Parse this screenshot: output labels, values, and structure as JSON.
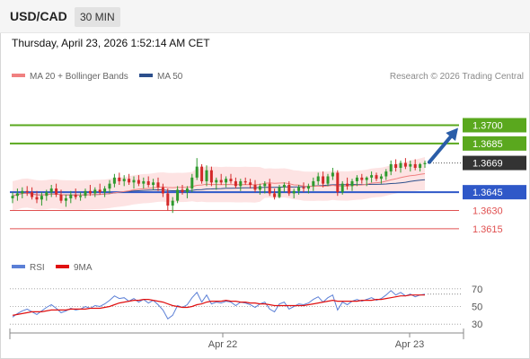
{
  "header": {
    "symbol": "USD/CAD",
    "timeframe": "30 MIN"
  },
  "timestamp": "Thursday, April 23, 2026 1:52:14 AM CET",
  "legend": {
    "ma20": {
      "label": "MA 20 + Bollinger Bands",
      "color": "#f08080"
    },
    "ma50": {
      "label": "MA 50",
      "color": "#2c4f8c"
    }
  },
  "copyright": "Research © 2026 Trading Central",
  "rsi_legend": {
    "rsi": {
      "label": "RSI",
      "color": "#5b7fd6"
    },
    "ma9": {
      "label": "9MA",
      "color": "#e01010"
    }
  },
  "colors": {
    "resistance": "#5aa81e",
    "support": "#2f58c8",
    "support_light": "#e05050",
    "price_tag": "#333333",
    "candle_up": "#2e9a2e",
    "candle_down": "#d42a2a",
    "band_fill": "#fde0e0",
    "arrow": "#2a5da8"
  },
  "chart_data": [
    {
      "type": "candlestick",
      "symbol": "USD/CAD",
      "timeframe": "30 MIN",
      "x_ticks": [
        "Apr 22",
        "Apr 23"
      ],
      "ylim": [
        1.3595,
        1.3735
      ],
      "last_price": 1.3669,
      "levels": [
        {
          "value": 1.37,
          "label": "1.3700",
          "kind": "resistance"
        },
        {
          "value": 1.3685,
          "label": "1.3685",
          "kind": "resistance"
        },
        {
          "value": 1.3645,
          "label": "1.3645",
          "kind": "support"
        },
        {
          "value": 1.363,
          "label": "1.3630",
          "kind": "support_light"
        },
        {
          "value": 1.3615,
          "label": "1.3615",
          "kind": "support_light"
        }
      ],
      "forecast": {
        "from": 1.3669,
        "to": 1.37,
        "direction": "up"
      },
      "ohlc": [
        [
          1.364,
          1.3645,
          1.3636,
          1.3642
        ],
        [
          1.3642,
          1.3648,
          1.3638,
          1.3644
        ],
        [
          1.3644,
          1.3649,
          1.364,
          1.3646
        ],
        [
          1.3646,
          1.365,
          1.3642,
          1.3645
        ],
        [
          1.3645,
          1.3649,
          1.3639,
          1.3641
        ],
        [
          1.3641,
          1.3646,
          1.3636,
          1.3639
        ],
        [
          1.3639,
          1.3645,
          1.3634,
          1.3642
        ],
        [
          1.3642,
          1.3647,
          1.3638,
          1.3645
        ],
        [
          1.3645,
          1.3651,
          1.3641,
          1.3648
        ],
        [
          1.3648,
          1.3652,
          1.3641,
          1.3643
        ],
        [
          1.3643,
          1.3647,
          1.3636,
          1.3638
        ],
        [
          1.3638,
          1.3643,
          1.3633,
          1.364
        ],
        [
          1.364,
          1.3646,
          1.3636,
          1.3643
        ],
        [
          1.3643,
          1.3648,
          1.3639,
          1.3641
        ],
        [
          1.3641,
          1.3645,
          1.3638,
          1.3642
        ],
        [
          1.3642,
          1.3648,
          1.364,
          1.3646
        ],
        [
          1.3646,
          1.3651,
          1.3642,
          1.3644
        ],
        [
          1.3644,
          1.3649,
          1.3641,
          1.3647
        ],
        [
          1.3647,
          1.3652,
          1.3643,
          1.3645
        ],
        [
          1.3645,
          1.365,
          1.3641,
          1.3648
        ],
        [
          1.3648,
          1.3655,
          1.3644,
          1.3652
        ],
        [
          1.3652,
          1.366,
          1.3649,
          1.3657
        ],
        [
          1.3657,
          1.3661,
          1.3651,
          1.3654
        ],
        [
          1.3654,
          1.3659,
          1.365,
          1.3656
        ],
        [
          1.3656,
          1.366,
          1.3651,
          1.3653
        ],
        [
          1.3653,
          1.3658,
          1.3648,
          1.3655
        ],
        [
          1.3655,
          1.3659,
          1.365,
          1.3652
        ],
        [
          1.3652,
          1.3657,
          1.3648,
          1.3654
        ],
        [
          1.3654,
          1.3658,
          1.3649,
          1.3651
        ],
        [
          1.3651,
          1.3656,
          1.3647,
          1.3653
        ],
        [
          1.3653,
          1.3657,
          1.3646,
          1.3649
        ],
        [
          1.3649,
          1.3652,
          1.3641,
          1.3644
        ],
        [
          1.3644,
          1.3648,
          1.363,
          1.3634
        ],
        [
          1.3634,
          1.3641,
          1.3628,
          1.3638
        ],
        [
          1.3638,
          1.365,
          1.3636,
          1.3647
        ],
        [
          1.3647,
          1.3651,
          1.3643,
          1.3645
        ],
        [
          1.3645,
          1.365,
          1.364,
          1.3648
        ],
        [
          1.3648,
          1.366,
          1.3645,
          1.3657
        ],
        [
          1.3657,
          1.3673,
          1.3655,
          1.3666
        ],
        [
          1.3666,
          1.3668,
          1.3652,
          1.3654
        ],
        [
          1.3654,
          1.3667,
          1.365,
          1.3663
        ],
        [
          1.3663,
          1.3666,
          1.365,
          1.3653
        ],
        [
          1.3653,
          1.3657,
          1.3647,
          1.3655
        ],
        [
          1.3655,
          1.366,
          1.3651,
          1.3653
        ],
        [
          1.3653,
          1.3658,
          1.3649,
          1.3656
        ],
        [
          1.3656,
          1.366,
          1.3652,
          1.3654
        ],
        [
          1.3654,
          1.3657,
          1.3648,
          1.365
        ],
        [
          1.365,
          1.3656,
          1.3646,
          1.3654
        ],
        [
          1.3654,
          1.3657,
          1.3651,
          1.3653
        ],
        [
          1.3653,
          1.3656,
          1.3648,
          1.3651
        ],
        [
          1.3651,
          1.3655,
          1.3645,
          1.3647
        ],
        [
          1.3647,
          1.3652,
          1.3643,
          1.365
        ],
        [
          1.365,
          1.3654,
          1.3644,
          1.3652
        ],
        [
          1.3652,
          1.3656,
          1.3642,
          1.3644
        ],
        [
          1.3644,
          1.3648,
          1.3639,
          1.3641
        ],
        [
          1.3641,
          1.3651,
          1.364,
          1.3649
        ],
        [
          1.3649,
          1.3653,
          1.3645,
          1.3651
        ],
        [
          1.3651,
          1.3654,
          1.3642,
          1.3644
        ],
        [
          1.3644,
          1.3648,
          1.364,
          1.3646
        ],
        [
          1.3646,
          1.3651,
          1.3643,
          1.3649
        ],
        [
          1.3649,
          1.3653,
          1.3645,
          1.3648
        ],
        [
          1.3648,
          1.3652,
          1.3644,
          1.365
        ],
        [
          1.365,
          1.3657,
          1.3646,
          1.3654
        ],
        [
          1.3654,
          1.3661,
          1.3651,
          1.3658
        ],
        [
          1.3658,
          1.3662,
          1.3649,
          1.3652
        ],
        [
          1.3652,
          1.366,
          1.365,
          1.3658
        ],
        [
          1.3658,
          1.3665,
          1.3655,
          1.3661
        ],
        [
          1.3661,
          1.3663,
          1.3642,
          1.3645
        ],
        [
          1.3645,
          1.3654,
          1.3643,
          1.3652
        ],
        [
          1.3652,
          1.3657,
          1.3647,
          1.365
        ],
        [
          1.365,
          1.3656,
          1.3646,
          1.3654
        ],
        [
          1.3654,
          1.3659,
          1.365,
          1.3657
        ],
        [
          1.3657,
          1.366,
          1.3652,
          1.3655
        ],
        [
          1.3655,
          1.3658,
          1.365,
          1.3657
        ],
        [
          1.3657,
          1.3662,
          1.3653,
          1.3659
        ],
        [
          1.3659,
          1.3661,
          1.3654,
          1.3656
        ],
        [
          1.3656,
          1.366,
          1.3652,
          1.3658
        ],
        [
          1.3658,
          1.3664,
          1.3655,
          1.3662
        ],
        [
          1.3662,
          1.3671,
          1.3659,
          1.3668
        ],
        [
          1.3668,
          1.3672,
          1.3662,
          1.3665
        ],
        [
          1.3665,
          1.3671,
          1.3661,
          1.3669
        ],
        [
          1.3669,
          1.3673,
          1.3664,
          1.3666
        ],
        [
          1.3666,
          1.3671,
          1.3662,
          1.3668
        ],
        [
          1.3668,
          1.3672,
          1.3663,
          1.3665
        ],
        [
          1.3665,
          1.3669,
          1.3662,
          1.3668
        ],
        [
          1.3668,
          1.3671,
          1.3665,
          1.3669
        ]
      ]
    },
    {
      "type": "line",
      "name": "RSI",
      "ylim": [
        20,
        80
      ],
      "y_ticks": [
        70,
        50,
        30
      ],
      "series": [
        {
          "name": "RSI",
          "values": [
            38,
            42,
            45,
            47,
            44,
            41,
            45,
            49,
            52,
            48,
            43,
            45,
            48,
            46,
            47,
            50,
            48,
            51,
            50,
            53,
            57,
            62,
            59,
            60,
            56,
            59,
            55,
            58,
            54,
            57,
            52,
            46,
            36,
            40,
            51,
            49,
            52,
            60,
            66,
            55,
            63,
            53,
            55,
            54,
            56,
            55,
            51,
            55,
            54,
            52,
            49,
            53,
            55,
            47,
            44,
            53,
            55,
            47,
            50,
            53,
            52,
            54,
            58,
            61,
            55,
            60,
            63,
            46,
            55,
            52,
            56,
            58,
            56,
            58,
            60,
            57,
            59,
            63,
            68,
            63,
            66,
            62,
            64,
            61,
            63,
            64
          ]
        },
        {
          "name": "9MA",
          "values": [
            40,
            41,
            42,
            43,
            44,
            44,
            44,
            45,
            46,
            46,
            46,
            46,
            47,
            47,
            47,
            47,
            48,
            48,
            48,
            49,
            50,
            52,
            54,
            55,
            56,
            57,
            57,
            58,
            58,
            57,
            56,
            55,
            53,
            51,
            50,
            49,
            49,
            50,
            52,
            53,
            55,
            56,
            56,
            56,
            57,
            56,
            56,
            55,
            55,
            54,
            54,
            53,
            53,
            52,
            51,
            51,
            51,
            51,
            51,
            51,
            51,
            52,
            53,
            54,
            55,
            56,
            57,
            56,
            56,
            56,
            56,
            56,
            57,
            57,
            57,
            58,
            58,
            59,
            60,
            61,
            62,
            62,
            63,
            63,
            63,
            63
          ]
        }
      ]
    }
  ]
}
